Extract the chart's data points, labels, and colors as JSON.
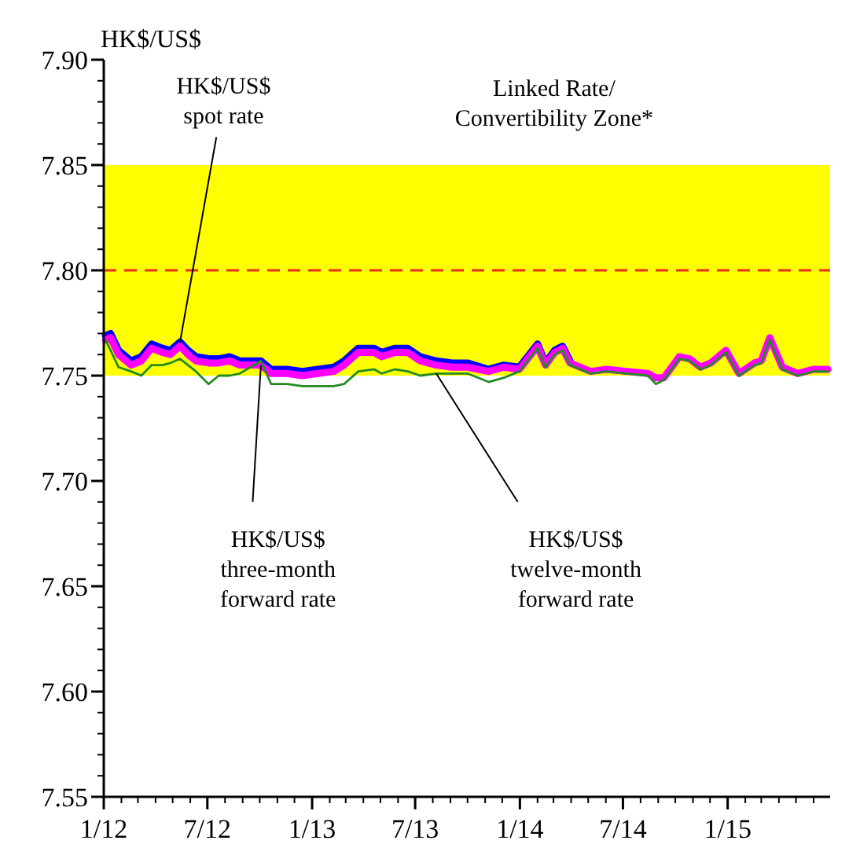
{
  "chart_data": {
    "type": "line",
    "ylabel": "HK$/US$",
    "x": [
      "2012-01-04",
      "2012-01-13",
      "2012-01-27",
      "2012-02-18",
      "2012-03-07",
      "2012-03-25",
      "2012-04-13",
      "2012-04-27",
      "2012-05-14",
      "2012-05-28",
      "2012-06-11",
      "2012-07-03",
      "2012-07-21",
      "2012-08-09",
      "2012-08-27",
      "2012-10-03",
      "2012-10-21",
      "2012-11-18",
      "2012-12-15",
      "2013-01-11",
      "2013-02-08",
      "2013-02-26",
      "2013-03-23",
      "2013-04-20",
      "2013-05-03",
      "2013-05-26",
      "2013-06-18",
      "2013-07-10",
      "2013-08-07",
      "2013-09-04",
      "2013-10-01",
      "2013-11-07",
      "2013-12-04",
      "2013-12-31",
      "2014-02-01",
      "2014-02-15",
      "2014-03-03",
      "2014-03-17",
      "2014-03-30",
      "2014-05-05",
      "2014-06-02",
      "2014-07-08",
      "2014-08-14",
      "2014-08-28",
      "2014-09-11",
      "2014-10-08",
      "2014-10-26",
      "2014-11-14",
      "2014-12-02",
      "2014-12-29",
      "2015-01-21",
      "2015-02-17",
      "2015-03-01",
      "2015-03-16",
      "2015-04-07",
      "2015-05-04",
      "2015-06-01",
      "2015-06-26"
    ],
    "series": [
      {
        "name": "HK$/US$ spot rate",
        "color": "#0000ff",
        "values": [
          7.769,
          7.77,
          7.762,
          7.757,
          7.759,
          7.765,
          7.763,
          7.762,
          7.766,
          7.762,
          7.759,
          7.758,
          7.758,
          7.759,
          7.757,
          7.757,
          7.753,
          7.753,
          7.752,
          7.753,
          7.754,
          7.757,
          7.763,
          7.763,
          7.761,
          7.763,
          7.763,
          7.759,
          7.757,
          7.756,
          7.756,
          7.753,
          7.755,
          7.754,
          7.765,
          7.756,
          7.762,
          7.764,
          7.757,
          null,
          null,
          null,
          null,
          null,
          null,
          null,
          null,
          null,
          null,
          null,
          null,
          null,
          null,
          null,
          null,
          null,
          null,
          null
        ]
      },
      {
        "name": "HK$/US$ three-month forward rate",
        "color": "#ff00ff",
        "values": [
          7.767,
          7.768,
          7.76,
          7.755,
          7.757,
          7.763,
          7.761,
          7.76,
          7.764,
          7.76,
          7.757,
          7.756,
          7.756,
          7.757,
          7.755,
          7.755,
          7.751,
          7.751,
          7.75,
          7.751,
          7.752,
          7.755,
          7.761,
          7.761,
          7.759,
          7.761,
          7.761,
          7.757,
          7.755,
          7.754,
          7.754,
          7.752,
          7.754,
          7.753,
          7.764,
          7.755,
          7.761,
          7.763,
          7.756,
          7.752,
          7.753,
          7.752,
          7.751,
          7.749,
          7.749,
          7.759,
          7.758,
          7.754,
          7.756,
          7.762,
          7.751,
          7.756,
          7.757,
          7.768,
          7.754,
          7.751,
          7.753,
          7.753
        ]
      },
      {
        "name": "HK$/US$ twelve-month forward rate",
        "color": "#228b22",
        "values": [
          7.767,
          7.762,
          7.754,
          7.752,
          7.75,
          7.755,
          7.755,
          7.756,
          7.758,
          7.755,
          7.752,
          7.746,
          7.75,
          7.75,
          7.751,
          7.757,
          7.746,
          7.746,
          7.745,
          7.745,
          7.745,
          7.746,
          7.752,
          7.753,
          7.751,
          7.753,
          7.752,
          7.75,
          7.751,
          7.751,
          7.751,
          7.747,
          7.749,
          7.752,
          7.763,
          7.754,
          7.76,
          7.762,
          7.755,
          7.751,
          7.752,
          7.751,
          7.75,
          7.746,
          7.748,
          7.758,
          7.757,
          7.753,
          7.755,
          7.761,
          7.75,
          7.755,
          7.756,
          7.767,
          7.753,
          7.75,
          7.752,
          7.752
        ]
      }
    ],
    "xlim": [
      "2012-01-01",
      "2015-06-30"
    ],
    "xticks": [
      {
        "value": "2012-01-01",
        "label": "1/12"
      },
      {
        "value": "2012-07-01",
        "label": "7/12"
      },
      {
        "value": "2013-01-01",
        "label": "1/13"
      },
      {
        "value": "2013-07-01",
        "label": "7/13"
      },
      {
        "value": "2014-01-01",
        "label": "1/14"
      },
      {
        "value": "2014-07-01",
        "label": "7/14"
      },
      {
        "value": "2015-01-01",
        "label": "1/15"
      }
    ],
    "ylim": [
      7.55,
      7.9
    ],
    "yticks": [
      {
        "value": 7.55,
        "label": "7.55"
      },
      {
        "value": 7.6,
        "label": "7.60"
      },
      {
        "value": 7.65,
        "label": "7.65"
      },
      {
        "value": 7.7,
        "label": "7.70"
      },
      {
        "value": 7.75,
        "label": "7.75"
      },
      {
        "value": 7.8,
        "label": "7.80"
      },
      {
        "value": 7.85,
        "label": "7.85"
      },
      {
        "value": 7.9,
        "label": "7.90"
      }
    ],
    "bands": [
      {
        "axis": "y",
        "from": 7.75,
        "to": 7.85,
        "label": "Linked Rate/ Convertibility Zone*",
        "color": "#ffff00"
      }
    ],
    "ref_lines": [
      {
        "axis": "y",
        "value": 7.8,
        "color": "#e8301c",
        "line_style": "dashed"
      }
    ],
    "grid": false,
    "marker": "none",
    "line_style": "solid"
  }
}
